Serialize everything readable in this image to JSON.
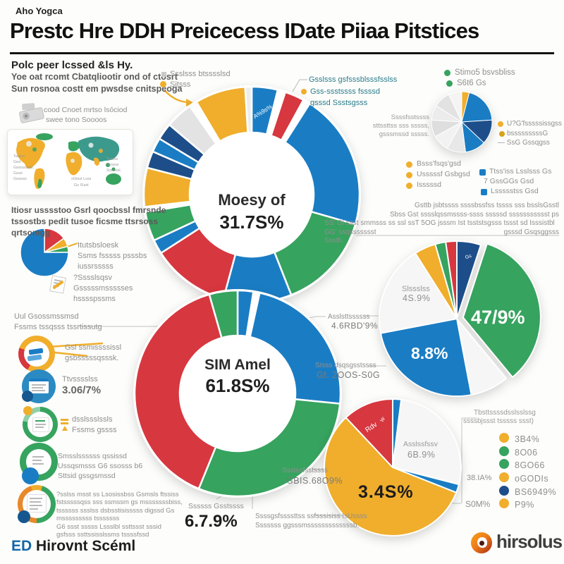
{
  "header": {
    "kicker": "Aho Yogca",
    "title": "Prestc Hre DDH Preicecess IDate Piiaa Pitstices",
    "subtitle": "Polc peer lcssed &ls Hy."
  },
  "colors": {
    "blue": "#1a7dc4",
    "navy": "#1d4e89",
    "red": "#d7373f",
    "green": "#36a35f",
    "yellow": "#f0ae2c"
  },
  "left": {
    "intro": [
      "Yoe oat rcomt Cbatqliootir ond of ctosrt",
      "Sun rosnoa costt em pwsdse cnitspeoga"
    ],
    "projector": [
      "cood Cnoet mrtso lsóciod",
      "swee tono Soooos"
    ],
    "map_left": [
      "Tsssiss",
      "Gsst",
      "Gsssssssssl,",
      "Gssst",
      "Gssssss"
    ],
    "map_right": [
      "Tsssiss",
      "Htsssss",
      "Sssssssl,"
    ],
    "map_bottom": [
      "sGtsst Lsss",
      "Gs  ISsst"
    ],
    "para2": [
      "Itiosr usssstoo Gsrl qoocbssl fmrsnde",
      "tssostbs pedit tusoe ficsme ttsrsoss",
      "qrtsomgg"
    ],
    "pie_block1": [
      "Itutsbsloesk",
      "Ssms fsssss psssbs",
      "iussrsssss"
    ],
    "pie_block2": [
      "?Sssslsqsv",
      "Gsssssmssssses",
      "hsssspssms"
    ],
    "uul": [
      "Uul Gsossmssmsd",
      "Fssms tssqsss tssrtissutg"
    ],
    "row1": [
      "Gsl ssmissssissl",
      "gsbsssssqsssk."
    ],
    "row2": [
      "Ttvsssslss",
      "3.06/7%"
    ],
    "row3": [
      "dsslssslssls",
      "Fssms gssss"
    ],
    "row4": [
      "Smsslssssss qssissd",
      "Ussqsmsss G6 ssosss b6",
      "Sttsid gssgsmssd"
    ],
    "row5": [
      "?sslss msst ss Lsosissbss Gsmsls ftssiss",
      "fstsssssqss sss ssmssm gs msssssssbiss,",
      "tssssss ssslss dsbsstisisssss digssd Gs",
      "msssssssss tsssssss",
      "G6 ssst sssss Lssslbl ssttssst sssid",
      "gsfsss ssttssisslssms tssssfssd"
    ],
    "logo_ed": "ED",
    "logo_rest": "Hirovnt Scéml"
  },
  "donut_top": {
    "legend": [
      "Ssslsss btsssslsd",
      "Sitsss"
    ],
    "callout": [
      "Gsslsss gsfsssblsssfsslss",
      "Gss-ssstssss fssssd",
      "gsssd Ssstsgsss"
    ],
    "tiny": "A%9s%"
  },
  "donut_bottom": {
    "callout1": [
      "Asslsttssssss",
      "4.6RBD'9%"
    ],
    "callout2": [
      "SIsss dsqsgsstssss",
      "Gt. 2OOS-S0G"
    ],
    "callout3": [
      "Ssstssfsstssss",
      "GBIS.68O9%"
    ],
    "callout4_label": "Ssssss Gsstssss",
    "callout4_value": "6.7.9%",
    "callout5": [
      "Ssssgsfssssttss ssfsssisiss IsUssss",
      "Sssssss ggsssmsssssssssssssb."
    ]
  },
  "right_top": {
    "green_legend": [
      "Stimo5 bsvsbliss",
      "S6t6 Gs"
    ],
    "left_text": [
      "Ssssfsstssss",
      "sttssttss sss sssss,",
      "gsssmssd sssss."
    ],
    "right_legend": [
      "U?G'fsssssissgss",
      "bsssssssssG",
      "— SsG Gssqgss"
    ],
    "bl_legend": [
      "Bsss'fsqs'gsd",
      "Usssssf Gsbgsd",
      "Isssssd"
    ],
    "br_legend": [
      "Ttss'iss Lsslsss Gs",
      "7 GssGGs Gsd",
      "Lssssstss Gsd"
    ]
  },
  "right_mid": {
    "para": [
      "Gsttb jsbtssss ssssbssfss tssss sss bsslsGsstl",
      "Sbss Gst sssslqssmssss-ssss sssssd ssssssssssst ps",
      "SS' Gl ssst smmsss ss ssl ssT 5OG jsssm Ist tsststsgsss tssst sd Isssistbl",
      "GG' ssqssssssst",
      "gsssd Gsqsggsss",
      "Sssth."
    ],
    "white1": "Slssslss",
    "white2": "4S.9%",
    "tiny": "Gs"
  },
  "right_bottom": {
    "red_label": "Rdv",
    "sliver_label": "W",
    "white1": "Asslssfssv",
    "white2": "6B.9%",
    "big": "3.4S%",
    "out1": "38.IA%",
    "out2": "S0M%",
    "legend_header": [
      "Tbsttssssdsslsslssg",
      "ssssbjssst tsssss ssst)"
    ],
    "legend": [
      {
        "color": "#f0ae2c",
        "label": "3B4%"
      },
      {
        "color": "#36a35f",
        "label": "8O06"
      },
      {
        "color": "#36a35f",
        "label": "8GO66"
      },
      {
        "color": "#f0ae2c",
        "label": "oGODIs"
      },
      {
        "color": "#1d4e89",
        "label": "BS6949%"
      },
      {
        "color": "#f0ae2c",
        "label": "P9%"
      }
    ]
  },
  "footer": {
    "brand": "hirsolus"
  },
  "chart_data": [
    {
      "id": "donut-top",
      "type": "donut",
      "center_label": [
        "Moesy of",
        "31.7S%"
      ],
      "segments": [
        {
          "value": 4,
          "color": "#1a7dc4",
          "label": "A%9s%"
        },
        {
          "value": 1.2,
          "color": "#ffffff"
        },
        {
          "value": 3,
          "color": "#d7373f"
        },
        {
          "value": 1.1,
          "color": "#ffffff"
        },
        {
          "value": 21,
          "color": "#1a7dc4"
        },
        {
          "value": 15,
          "color": "#36a35f"
        },
        {
          "value": 10.5,
          "color": "#1a7dc4"
        },
        {
          "value": 12,
          "color": "#d7373f"
        },
        {
          "value": 2.2,
          "color": "#1a7dc4"
        },
        {
          "value": 4.5,
          "color": "#36a35f"
        },
        {
          "value": 0.8,
          "color": "#ffffff"
        },
        {
          "value": 6,
          "color": "#f0ae2c"
        },
        {
          "value": 2.6,
          "color": "#1d4e89"
        },
        {
          "value": 2.2,
          "color": "#1a7dc4"
        },
        {
          "value": 2.6,
          "color": "#1d4e89"
        },
        {
          "value": 4.2,
          "color": "#e3e3e3"
        },
        {
          "value": 1.2,
          "color": "#ffffff"
        },
        {
          "value": 7.8,
          "color": "#f0ae2c"
        },
        {
          "value": 1.0,
          "color": "#ededed"
        }
      ]
    },
    {
      "id": "donut-bottom",
      "type": "donut",
      "center_label": [
        "SIM Amel",
        "61.8S%"
      ],
      "segments": [
        {
          "value": 2.5,
          "color": "#1a7dc4"
        },
        {
          "value": 1,
          "color": "#ffffff"
        },
        {
          "value": 23.5,
          "color": "#1a7dc4"
        },
        {
          "value": 30,
          "color": "#36a35f"
        },
        {
          "value": 40,
          "color": "#d7373f"
        },
        {
          "value": 4.5,
          "color": "#36a35f"
        }
      ]
    },
    {
      "id": "pie-left",
      "type": "pie",
      "segments": [
        {
          "value": 15,
          "color": "#d7373f"
        },
        {
          "value": 6,
          "color": "#f0ae2c"
        },
        {
          "value": 4,
          "color": "#36a35f"
        },
        {
          "value": 75,
          "color": "#1a7dc4"
        }
      ]
    },
    {
      "id": "pie-topright",
      "type": "pie",
      "segments": [
        {
          "value": 4,
          "color": "#f0ae2c"
        },
        {
          "value": 20,
          "color": "#1a7dc4"
        },
        {
          "value": 13,
          "color": "#1d4e89"
        },
        {
          "value": 11,
          "color": "#1a7dc4"
        },
        {
          "value": 10,
          "color": "#e8e8e8"
        },
        {
          "value": 9,
          "color": "#f2f2f2"
        },
        {
          "value": 9,
          "color": "#dedede"
        },
        {
          "value": 8,
          "color": "#ececec"
        },
        {
          "value": 9,
          "color": "#e2e2e2"
        },
        {
          "value": 7,
          "color": "#f4f4f4"
        }
      ]
    },
    {
      "id": "pie-mid",
      "type": "pie",
      "labels": {
        "big": "47/9%",
        "blue": "8.8%"
      },
      "segments": [
        {
          "value": 5,
          "color": "#1d4e89"
        },
        {
          "value": 34,
          "color": "#36a35f",
          "offset": 9
        },
        {
          "value": 8,
          "color": "#f6f6f6"
        },
        {
          "value": 25,
          "color": "#1a7dc4"
        },
        {
          "value": 19,
          "color": "#f6f6f6"
        },
        {
          "value": 4.5,
          "color": "#f0ae2c"
        },
        {
          "value": 2.2,
          "color": "#36a35f"
        },
        {
          "value": 2.3,
          "color": "#d7373f"
        }
      ]
    },
    {
      "id": "pie-bottomright",
      "type": "pie",
      "segments": [
        {
          "value": 2,
          "color": "#1a7dc4"
        },
        {
          "value": 27,
          "color": "#f6f6f6"
        },
        {
          "value": 2,
          "color": "#1a7dc4"
        },
        {
          "value": 57,
          "color": "#f0ae2c"
        },
        {
          "value": 12,
          "color": "#d7373f"
        }
      ]
    }
  ]
}
